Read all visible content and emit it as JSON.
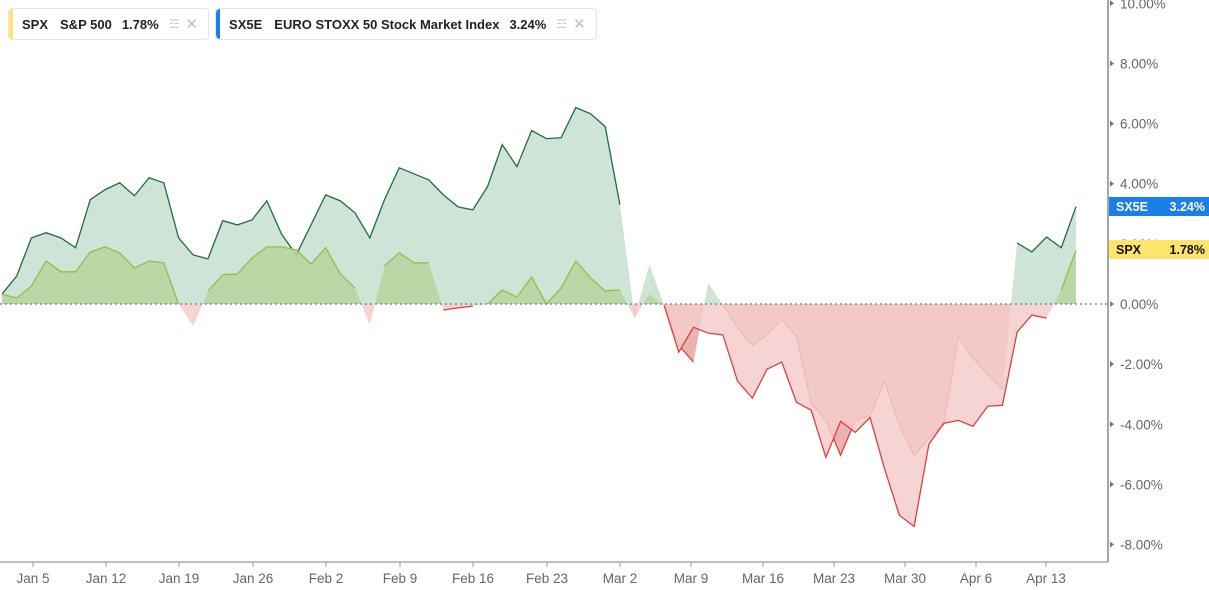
{
  "legend": [
    {
      "symbol": "SPX",
      "name": "S&P 500",
      "change": "1.78%",
      "color": "#fde46a",
      "layers_icon": "layers-add-icon",
      "close_icon": "close-icon"
    },
    {
      "symbol": "SX5E",
      "name": "EURO STOXX 50 Stock Market Index",
      "change": "3.24%",
      "color": "#1a7fe8",
      "layers_icon": "layers-add-icon",
      "close_icon": "close-icon"
    }
  ],
  "price_tags": [
    {
      "symbol": "SX5E",
      "value": "3.24%",
      "bg": "#1a7fe8",
      "fg": "#ffffff"
    },
    {
      "symbol": "SPX",
      "value": "1.78%",
      "bg": "#fde46a",
      "fg": "#111111"
    }
  ],
  "colors": {
    "positive_line_sx5e": "#1e6e3a",
    "positive_fill_sx5e": "#c4dfcf",
    "positive_line_spx": "#8bc34a",
    "positive_fill_spx": "#b5d69c",
    "negative_line": "#d9423a",
    "negative_fill_sx5e": "#e6a4a2",
    "negative_fill_spx": "#f3cccb"
  },
  "chart_data": {
    "type": "area",
    "title": "",
    "xlabel": "",
    "ylabel": "",
    "ylim": [
      -8.6,
      10
    ],
    "y_ticks": [
      "10.00%",
      "8.00%",
      "6.00%",
      "4.00%",
      "2.00%",
      "0.00%",
      "-2.00%",
      "-4.00%",
      "-6.00%",
      "-8.00%"
    ],
    "x_ticks": [
      "Jan 5",
      "Jan 12",
      "Jan 19",
      "Jan 26",
      "Feb 2",
      "Feb 9",
      "Feb 16",
      "Feb 23",
      "Mar 2",
      "Mar 9",
      "Mar 16",
      "Mar 23",
      "Mar 30",
      "Apr 6",
      "Apr 13"
    ],
    "baseline": 0,
    "series": [
      {
        "name": "SX5E",
        "values": [
          0.33,
          0.93,
          2.2,
          2.37,
          2.2,
          1.87,
          3.47,
          3.8,
          4.03,
          3.6,
          4.2,
          4.03,
          2.2,
          1.63,
          1.5,
          2.77,
          2.63,
          2.8,
          3.43,
          2.33,
          1.63,
          2.63,
          3.63,
          3.43,
          3.03,
          2.2,
          3.47,
          4.53,
          4.33,
          4.13,
          3.63,
          3.23,
          3.13,
          3.9,
          5.3,
          4.57,
          5.77,
          5.5,
          5.53,
          6.53,
          6.33,
          5.9,
          3.3,
          -0.43,
          1.3,
          -0.03,
          -1.37,
          -1.93,
          0.7,
          -0.03,
          -0.8,
          -1.37,
          -1.03,
          -0.5,
          -1.07,
          -3.3,
          -3.87,
          -5.03,
          -3.87,
          -3.7,
          -2.57,
          -4.03,
          -5.03,
          -4.47,
          -4.0,
          -1.1,
          -1.8,
          -2.33,
          -2.83,
          2.03,
          1.73,
          2.23,
          1.87,
          3.24
        ]
      },
      {
        "name": "SPX",
        "values": [
          0.33,
          0.2,
          0.6,
          1.43,
          1.07,
          1.07,
          1.73,
          1.9,
          1.7,
          1.2,
          1.43,
          1.37,
          0.0,
          -0.73,
          0.43,
          0.97,
          1.0,
          1.53,
          1.9,
          1.9,
          1.8,
          1.33,
          1.87,
          1.0,
          0.53,
          -0.7,
          1.27,
          1.7,
          1.37,
          1.37,
          -0.2,
          -0.13,
          -0.07,
          0.0,
          0.47,
          0.23,
          0.9,
          0.0,
          0.53,
          1.43,
          0.87,
          0.43,
          0.47,
          -0.47,
          0.33,
          -0.03,
          -1.6,
          -0.77,
          -0.97,
          -1.03,
          -2.57,
          -3.13,
          -2.17,
          -1.93,
          -3.27,
          -3.53,
          -5.1,
          -3.9,
          -4.27,
          -3.77,
          -5.5,
          -7.03,
          -7.4,
          -4.67,
          -3.97,
          -3.87,
          -4.07,
          -3.4,
          -3.37,
          -0.93,
          -0.37,
          -0.47,
          0.47,
          1.78
        ]
      }
    ]
  }
}
